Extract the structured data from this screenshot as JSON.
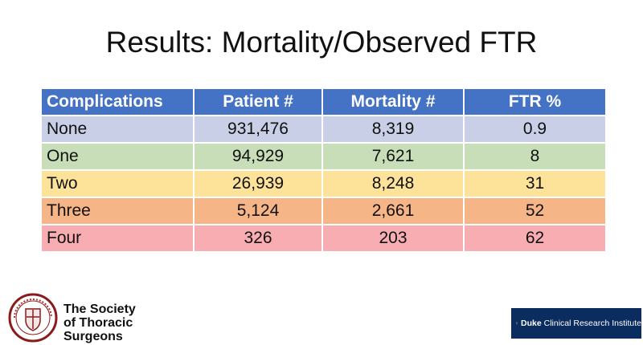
{
  "slide": {
    "title": "Results: Mortality/Observed FTR"
  },
  "table": {
    "headers": [
      "Complications",
      "Patient #",
      "Mortality #",
      "FTR %"
    ],
    "rows": [
      [
        "None",
        "931,476",
        "8,319",
        "0.9"
      ],
      [
        "One",
        "94,929",
        "7,621",
        "8"
      ],
      [
        "Two",
        "26,939",
        "8,248",
        "31"
      ],
      [
        "Three",
        "5,124",
        "2,661",
        "52"
      ],
      [
        "Four",
        "326",
        "203",
        "62"
      ]
    ],
    "row_colors": [
      "#c9cfe7",
      "#c7deb8",
      "#fde39a",
      "#f6b587",
      "#f7adb1"
    ],
    "header_color": "#4472c4"
  },
  "logos": {
    "sts": {
      "line1": "The Society",
      "line2": "of Thoracic",
      "line3": "Surgeons",
      "seal_text": "THE SOCIETY OF THORACIC SURGEONS",
      "seal_icon": "sts-seal-icon"
    },
    "duke": {
      "brand": "Duke",
      "rest": " Clinical Research Institute",
      "icon": "duke-shield-icon"
    }
  }
}
